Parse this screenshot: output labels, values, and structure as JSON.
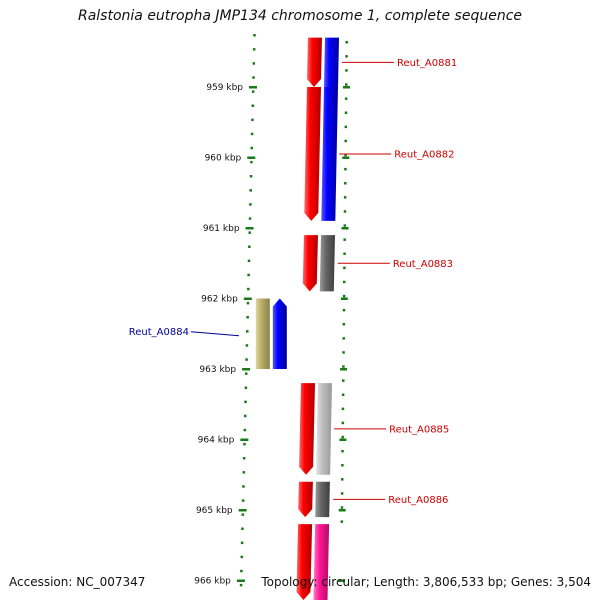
{
  "title": "Ralstonia eutropha JMP134 chromosome 1, complete sequence",
  "footer": {
    "accession": "Accession: NC_007347",
    "summary": "Topology: circular; Length: 3,806,533 bp; Genes: 3,504"
  },
  "colors": {
    "tick": "#1a7a1a",
    "label_red": "#cc0000",
    "label_blue": "#00009a",
    "backbone": "#888888"
  },
  "ruler": {
    "ticks": [
      {
        "label": "959 kbp",
        "kbp": 959
      },
      {
        "label": "960 kbp",
        "kbp": 960
      },
      {
        "label": "961 kbp",
        "kbp": 961
      },
      {
        "label": "962 kbp",
        "kbp": 962
      },
      {
        "label": "963 kbp",
        "kbp": 963
      },
      {
        "label": "964 kbp",
        "kbp": 964
      },
      {
        "label": "965 kbp",
        "kbp": 965
      },
      {
        "label": "966 kbp",
        "kbp": 966
      }
    ]
  },
  "genes": [
    {
      "name": "Reut_A0881",
      "strand": "forward",
      "start_kbp": 958.3,
      "end_kbp": 959.0,
      "cds_color": "#ff0000",
      "feature_color": "#0000ff",
      "label_color": "#cc0000"
    },
    {
      "name": "Reut_A0882",
      "strand": "forward",
      "start_kbp": 959.0,
      "end_kbp": 960.9,
      "cds_color": "#ff0000",
      "feature_color": "#0000ff",
      "label_color": "#cc0000"
    },
    {
      "name": "Reut_A0883",
      "strand": "forward",
      "start_kbp": 961.1,
      "end_kbp": 961.9,
      "cds_color": "#ff0000",
      "feature_color": "#666666",
      "label_color": "#cc0000"
    },
    {
      "name": "Reut_A0884",
      "strand": "reverse",
      "start_kbp": 962.0,
      "end_kbp": 963.0,
      "cds_color": "#0000ff",
      "feature_color": "#b8ad6a",
      "label_color": "#00009a"
    },
    {
      "name": "Reut_A0885",
      "strand": "forward",
      "start_kbp": 963.2,
      "end_kbp": 964.5,
      "cds_color": "#ff0000",
      "feature_color": "#bbbbbb",
      "label_color": "#cc0000"
    },
    {
      "name": "Reut_A0886",
      "strand": "forward",
      "start_kbp": 964.6,
      "end_kbp": 965.1,
      "cds_color": "#ff0000",
      "feature_color": "#666666",
      "label_color": "#cc0000"
    },
    {
      "name": "",
      "strand": "forward",
      "start_kbp": 965.2,
      "end_kbp": 966.3,
      "cds_color": "#ff0000",
      "feature_color": "#ff1493",
      "label_color": "#cc0000"
    }
  ]
}
